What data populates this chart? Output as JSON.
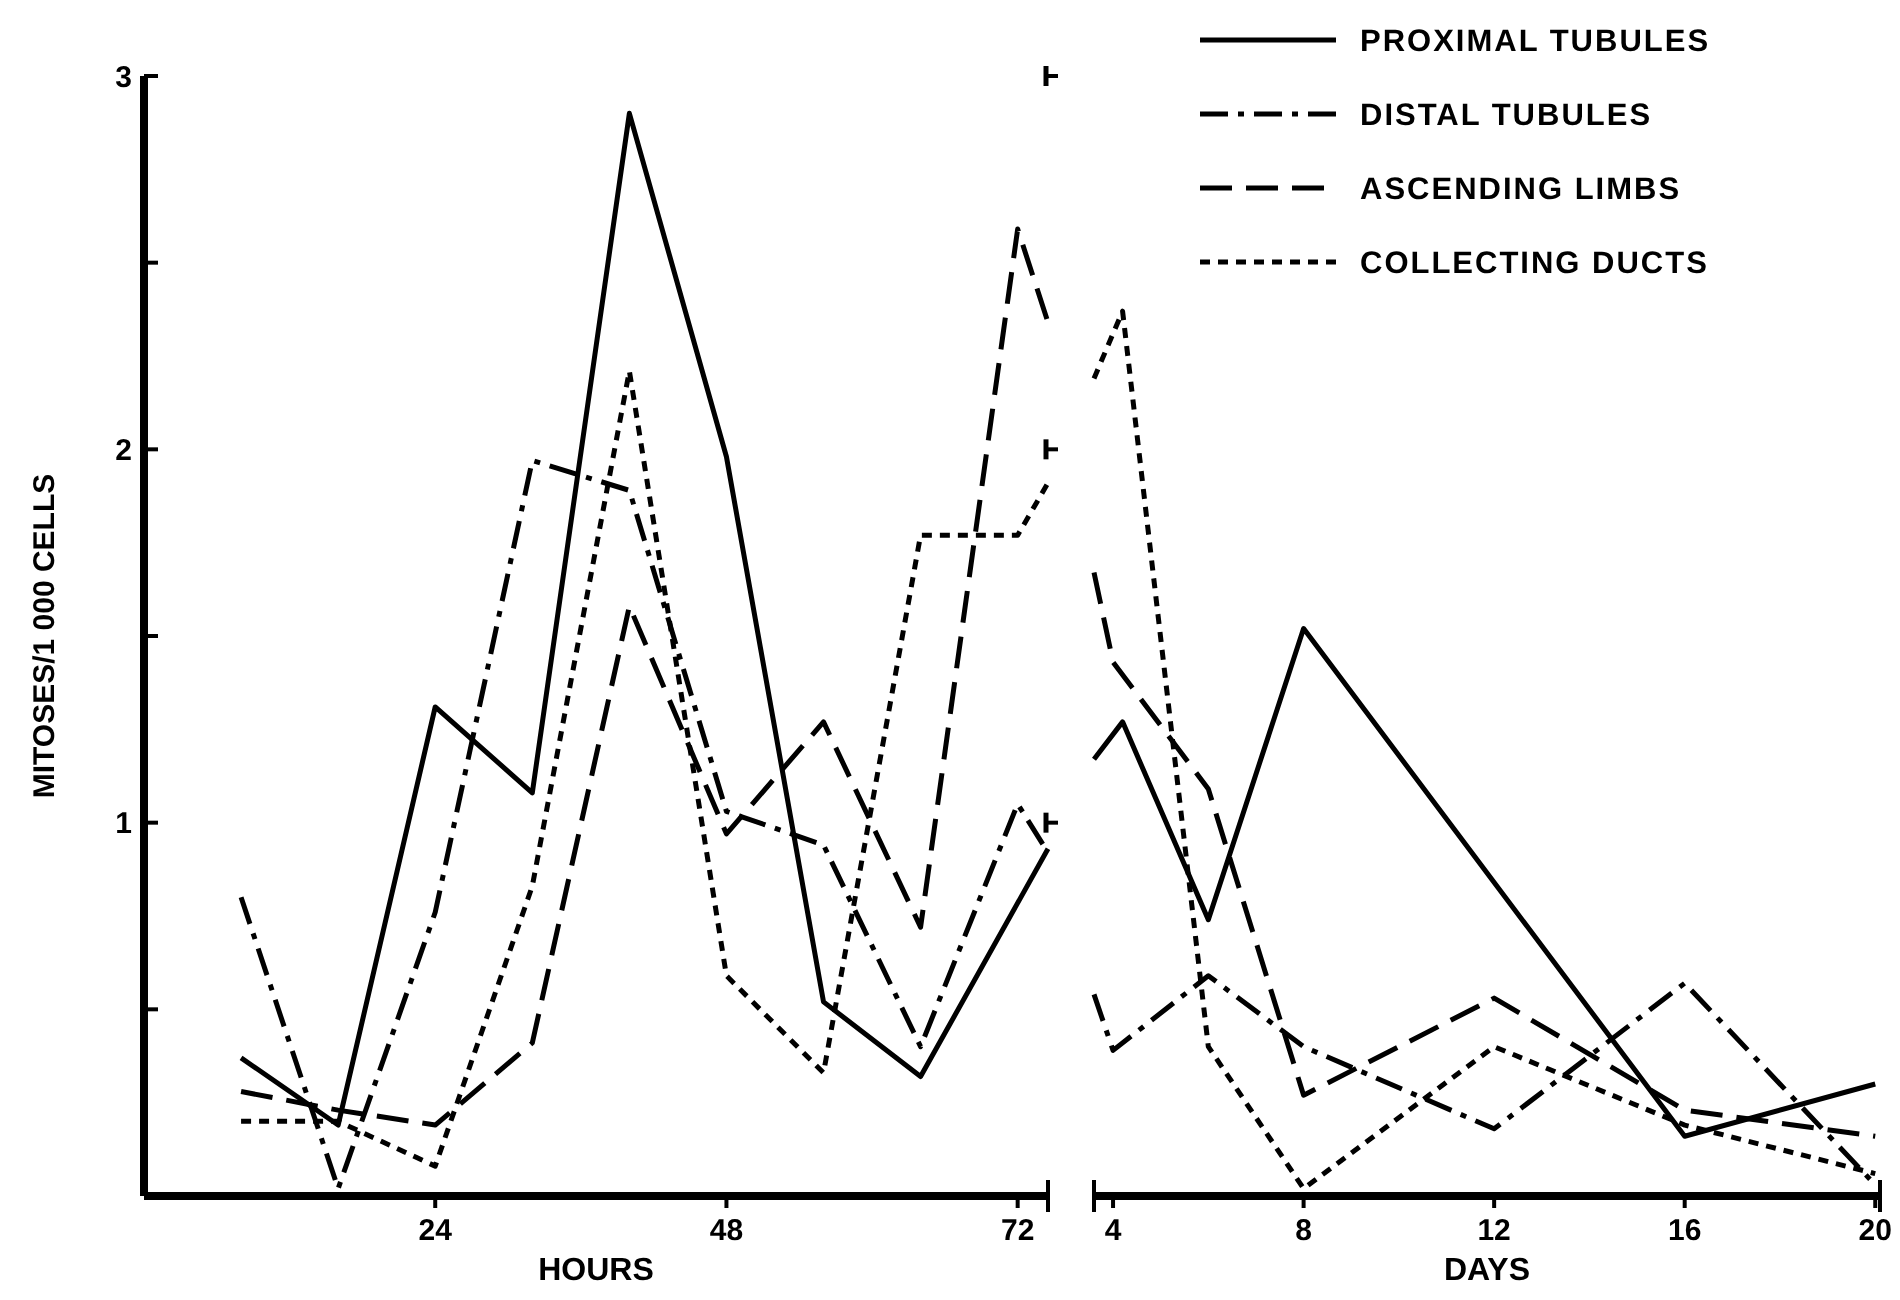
{
  "chart_data": [
    {
      "type": "line",
      "xlabel": "HOURS",
      "ylabel": "MITOSES/1 000 CELLS",
      "xlim": [
        0,
        74.5
      ],
      "xticks": [
        24,
        48,
        72
      ],
      "ylim": [
        0,
        3
      ],
      "yticks": [
        {
          "value": 0.5,
          "label": null
        },
        1,
        {
          "value": 1.5,
          "label": null
        },
        2,
        {
          "value": 2.5,
          "label": null
        },
        3
      ],
      "series": [
        {
          "color": "#000000",
          "line_style": "solid",
          "x": [
            8,
            16,
            24,
            32,
            40,
            48,
            56,
            64,
            74.5
          ],
          "values": [
            0.37,
            0.19,
            1.31,
            1.08,
            2.9,
            1.98,
            0.52,
            0.32,
            0.93
          ]
        },
        {
          "color": "#000000",
          "line_style": "dashdot",
          "x": [
            8,
            16,
            24,
            32,
            40,
            48,
            56,
            64,
            72,
            74.5
          ],
          "values": [
            0.8,
            0.02,
            0.76,
            1.97,
            1.89,
            1.03,
            0.94,
            0.4,
            1.05,
            0.92
          ]
        },
        {
          "color": "#000000",
          "line_style": "dashed",
          "x": [
            8,
            16,
            24,
            32,
            40,
            48,
            56,
            64,
            72,
            74.5
          ],
          "values": [
            0.28,
            0.23,
            0.19,
            0.41,
            1.58,
            0.97,
            1.27,
            0.72,
            2.59,
            2.34
          ]
        },
        {
          "color": "#000000",
          "line_style": "dotted",
          "x": [
            8,
            16,
            24,
            32,
            40,
            48,
            56,
            64,
            72,
            74.5
          ],
          "values": [
            0.2,
            0.2,
            0.08,
            0.83,
            2.21,
            0.59,
            0.33,
            1.77,
            1.77,
            1.91
          ]
        }
      ]
    },
    {
      "type": "line",
      "xlabel": "DAYS",
      "xlim": [
        3.6,
        20.1
      ],
      "xticks": [
        4,
        8,
        12,
        16,
        20
      ],
      "ylim": [
        0,
        3
      ],
      "yticks": [
        1,
        2,
        3
      ],
      "tick_labels": "x",
      "legend": "top right",
      "series": [
        {
          "name": "PROXIMAL TUBULES",
          "color": "#000000",
          "line_style": "solid",
          "x": [
            3.6,
            4.2,
            6,
            8,
            16,
            20
          ],
          "values": [
            1.17,
            1.27,
            0.74,
            1.52,
            0.16,
            0.3
          ]
        },
        {
          "name": "DISTAL TUBULES",
          "color": "#000000",
          "line_style": "dashdot",
          "x": [
            3.6,
            4,
            6,
            8,
            12,
            16,
            20
          ],
          "values": [
            0.54,
            0.39,
            0.59,
            0.4,
            0.18,
            0.57,
            0.03
          ]
        },
        {
          "name": "ASCENDING LIMBS",
          "color": "#000000",
          "line_style": "dashed",
          "x": [
            3.6,
            4,
            6,
            8,
            12,
            16,
            20
          ],
          "values": [
            1.67,
            1.43,
            1.09,
            0.27,
            0.53,
            0.23,
            0.16
          ]
        },
        {
          "name": "COLLECTING DUCTS",
          "color": "#000000",
          "line_style": "dotted",
          "x": [
            3.6,
            4.2,
            6,
            8,
            12,
            16,
            20
          ],
          "values": [
            2.19,
            2.37,
            0.4,
            0.02,
            0.4,
            0.19,
            0.06
          ]
        }
      ]
    }
  ]
}
